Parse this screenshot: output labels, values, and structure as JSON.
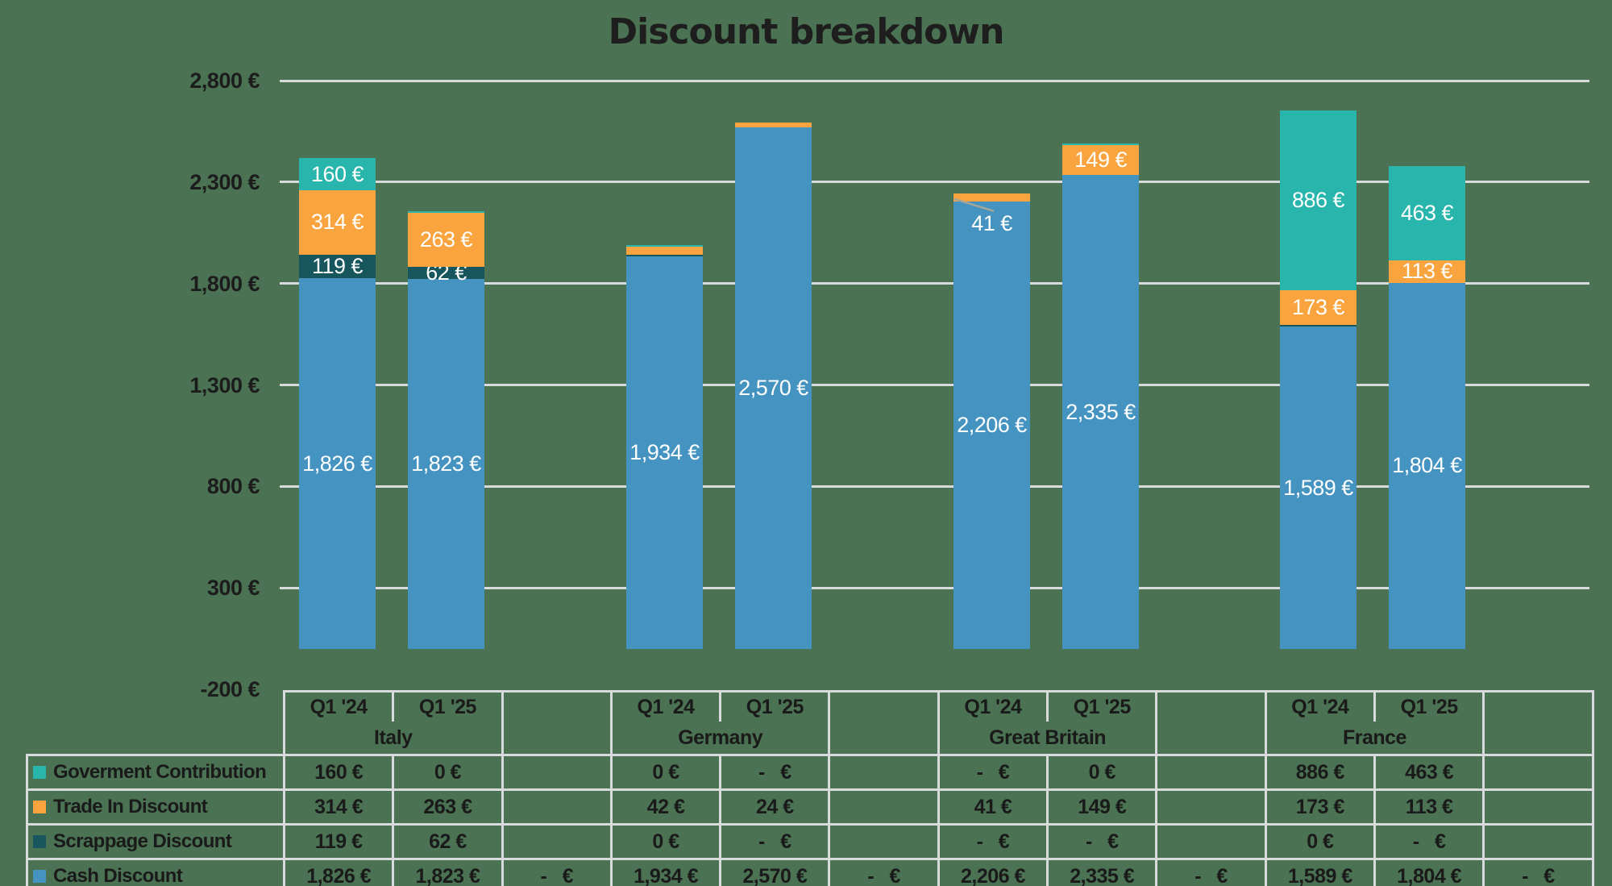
{
  "page": {
    "background": "#4a7253"
  },
  "chart_data": {
    "type": "bar",
    "stacked": true,
    "title": "Discount breakdown",
    "xlabel": "",
    "ylabel": "",
    "ylim": [
      -200,
      2800
    ],
    "ytick_step": 500,
    "grid": true,
    "legend_position": "table-left-below",
    "yticks": [
      {
        "value": 2800,
        "label": "2,800 €"
      },
      {
        "value": 2300,
        "label": "2,300 €"
      },
      {
        "value": 1800,
        "label": "1,800 €"
      },
      {
        "value": 1300,
        "label": "1,300 €"
      },
      {
        "value": 800,
        "label": "800 €"
      },
      {
        "value": 300,
        "label": "300 €"
      },
      {
        "value": -200,
        "label": "-200 €"
      }
    ],
    "series": [
      {
        "name": "Goverment Contribution",
        "color": "#28b5ab"
      },
      {
        "name": "Trade In Discount",
        "color": "#f9a43f"
      },
      {
        "name": "Scrappage Discount",
        "color": "#16565c"
      },
      {
        "name": "Cash Discount",
        "color": "#4493c1"
      }
    ],
    "groups": [
      "Italy",
      "Germany",
      "Great Britain",
      "France"
    ],
    "quarters": [
      "Q1 '24",
      "Q1 '25"
    ],
    "bars": [
      {
        "group": "Italy",
        "quarter": "Q1 '24",
        "segments": [
          {
            "series": "Cash Discount",
            "value": 1826,
            "label": "1,826 €"
          },
          {
            "series": "Scrappage Discount",
            "value": 119,
            "label": "119 €"
          },
          {
            "series": "Trade In Discount",
            "value": 314,
            "label": "314 €"
          },
          {
            "series": "Goverment Contribution",
            "value": 160,
            "label": "160 €"
          }
        ]
      },
      {
        "group": "Italy",
        "quarter": "Q1 '25",
        "segments": [
          {
            "series": "Cash Discount",
            "value": 1823,
            "label": "1,823 €"
          },
          {
            "series": "Scrappage Discount",
            "value": 62,
            "label": "62 €"
          },
          {
            "series": "Trade In Discount",
            "value": 263,
            "label": "263 €"
          },
          {
            "series": "Goverment Contribution",
            "value": 0,
            "label": null
          }
        ]
      },
      {
        "group": "Germany",
        "quarter": "Q1 '24",
        "segments": [
          {
            "series": "Cash Discount",
            "value": 1934,
            "label": "1,934 €"
          },
          {
            "series": "Scrappage Discount",
            "value": 0,
            "label": null
          },
          {
            "series": "Trade In Discount",
            "value": 42,
            "label": null
          },
          {
            "series": "Goverment Contribution",
            "value": 0,
            "label": null
          }
        ]
      },
      {
        "group": "Germany",
        "quarter": "Q1 '25",
        "segments": [
          {
            "series": "Cash Discount",
            "value": 2570,
            "label": "2,570 €"
          },
          {
            "series": "Scrappage Discount",
            "value": null,
            "label": null
          },
          {
            "series": "Trade In Discount",
            "value": 24,
            "label": null
          },
          {
            "series": "Goverment Contribution",
            "value": null,
            "label": null
          }
        ]
      },
      {
        "group": "Great Britain",
        "quarter": "Q1 '24",
        "segments": [
          {
            "series": "Cash Discount",
            "value": 2206,
            "label": "2,206 €"
          },
          {
            "series": "Scrappage Discount",
            "value": null,
            "label": null
          },
          {
            "series": "Trade In Discount",
            "value": 41,
            "label": "41 €",
            "label_callout": true
          },
          {
            "series": "Goverment Contribution",
            "value": null,
            "label": null
          }
        ]
      },
      {
        "group": "Great Britain",
        "quarter": "Q1 '25",
        "segments": [
          {
            "series": "Cash Discount",
            "value": 2335,
            "label": "2,335 €"
          },
          {
            "series": "Scrappage Discount",
            "value": null,
            "label": null
          },
          {
            "series": "Trade In Discount",
            "value": 149,
            "label": "149 €"
          },
          {
            "series": "Goverment Contribution",
            "value": 0,
            "label": null
          }
        ]
      },
      {
        "group": "France",
        "quarter": "Q1 '24",
        "segments": [
          {
            "series": "Cash Discount",
            "value": 1589,
            "label": "1,589 €"
          },
          {
            "series": "Scrappage Discount",
            "value": 0,
            "label": null
          },
          {
            "series": "Trade In Discount",
            "value": 173,
            "label": "173 €"
          },
          {
            "series": "Goverment Contribution",
            "value": 886,
            "label": "886 €"
          }
        ]
      },
      {
        "group": "France",
        "quarter": "Q1 '25",
        "segments": [
          {
            "series": "Cash Discount",
            "value": 1804,
            "label": "1,804 €"
          },
          {
            "series": "Scrappage Discount",
            "value": null,
            "label": null
          },
          {
            "series": "Trade In Discount",
            "value": 113,
            "label": "113 €"
          },
          {
            "series": "Goverment Contribution",
            "value": 463,
            "label": "463 €"
          }
        ]
      }
    ]
  },
  "table": {
    "quarter_headers": [
      "Q1 '24",
      "Q1 '25"
    ],
    "countries": [
      "Italy",
      "Germany",
      "Great Britain",
      "France"
    ],
    "rows": [
      {
        "legend": "Goverment Contribution",
        "color": "#28b5ab",
        "cells": [
          "160 €",
          "0 €",
          "",
          "0 €",
          "-   €",
          "",
          "-   €",
          "0 €",
          "",
          "886 €",
          "463 €",
          ""
        ]
      },
      {
        "legend": "Trade In Discount",
        "color": "#f9a43f",
        "cells": [
          "314 €",
          "263 €",
          "",
          "42 €",
          "24 €",
          "",
          "41 €",
          "149 €",
          "",
          "173 €",
          "113 €",
          ""
        ]
      },
      {
        "legend": "Scrappage Discount",
        "color": "#16565c",
        "cells": [
          "119 €",
          "62 €",
          "",
          "0 €",
          "-   €",
          "",
          "-   €",
          "-   €",
          "",
          "0 €",
          "-   €",
          ""
        ]
      },
      {
        "legend": "Cash Discount",
        "color": "#4493c1",
        "cells": [
          "1,826 €",
          "1,823 €",
          "-   €",
          "1,934 €",
          "2,570 €",
          "-   €",
          "2,206 €",
          "2,335 €",
          "-   €",
          "1,589 €",
          "1,804 €",
          "-   €"
        ]
      }
    ]
  }
}
